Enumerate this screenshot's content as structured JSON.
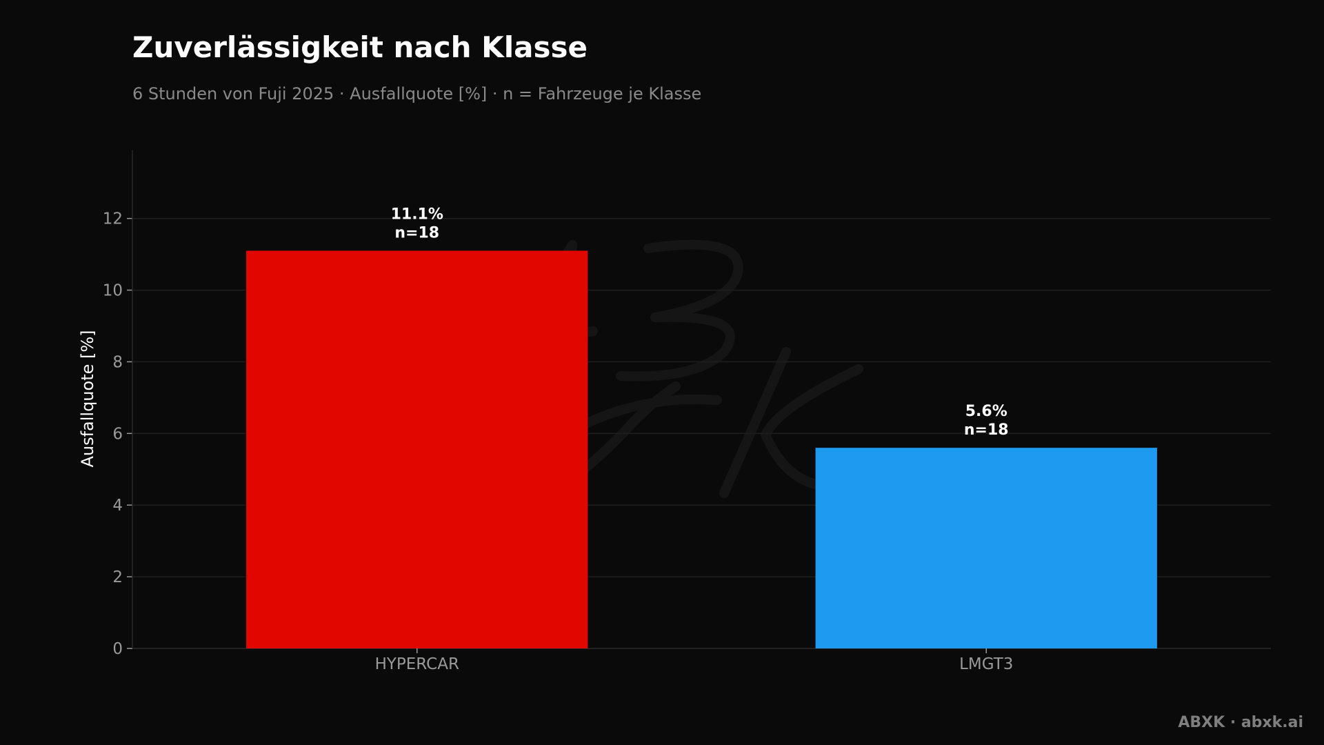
{
  "chart_data": {
    "type": "bar",
    "title": "Zuverlässigkeit nach Klasse",
    "subtitle": "6 Stunden von Fuji 2025 · Ausfallquote [%] · n = Fahrzeuge je Klasse",
    "xlabel": "",
    "ylabel": "Ausfallquote [%]",
    "categories": [
      "HYPERCAR",
      "LMGT3"
    ],
    "values": [
      11.1,
      5.6
    ],
    "value_labels": [
      "11.1%",
      "5.6%"
    ],
    "count_labels": [
      "n=18",
      "n=18"
    ],
    "colors": [
      "#e10600",
      "#1e9bf0"
    ],
    "ylim": [
      0,
      13.9
    ],
    "yticks": [
      0,
      2,
      4,
      6,
      8,
      10,
      12
    ],
    "grid": true,
    "legend": "none"
  },
  "footer": {
    "credit": "ABXK · abxk.ai"
  },
  "theme": {
    "background": "#0a0a0a",
    "grid_color": "#1f1f1f",
    "axis_color": "#2a2a2a",
    "tick_label_color": "#9a9a9a"
  }
}
